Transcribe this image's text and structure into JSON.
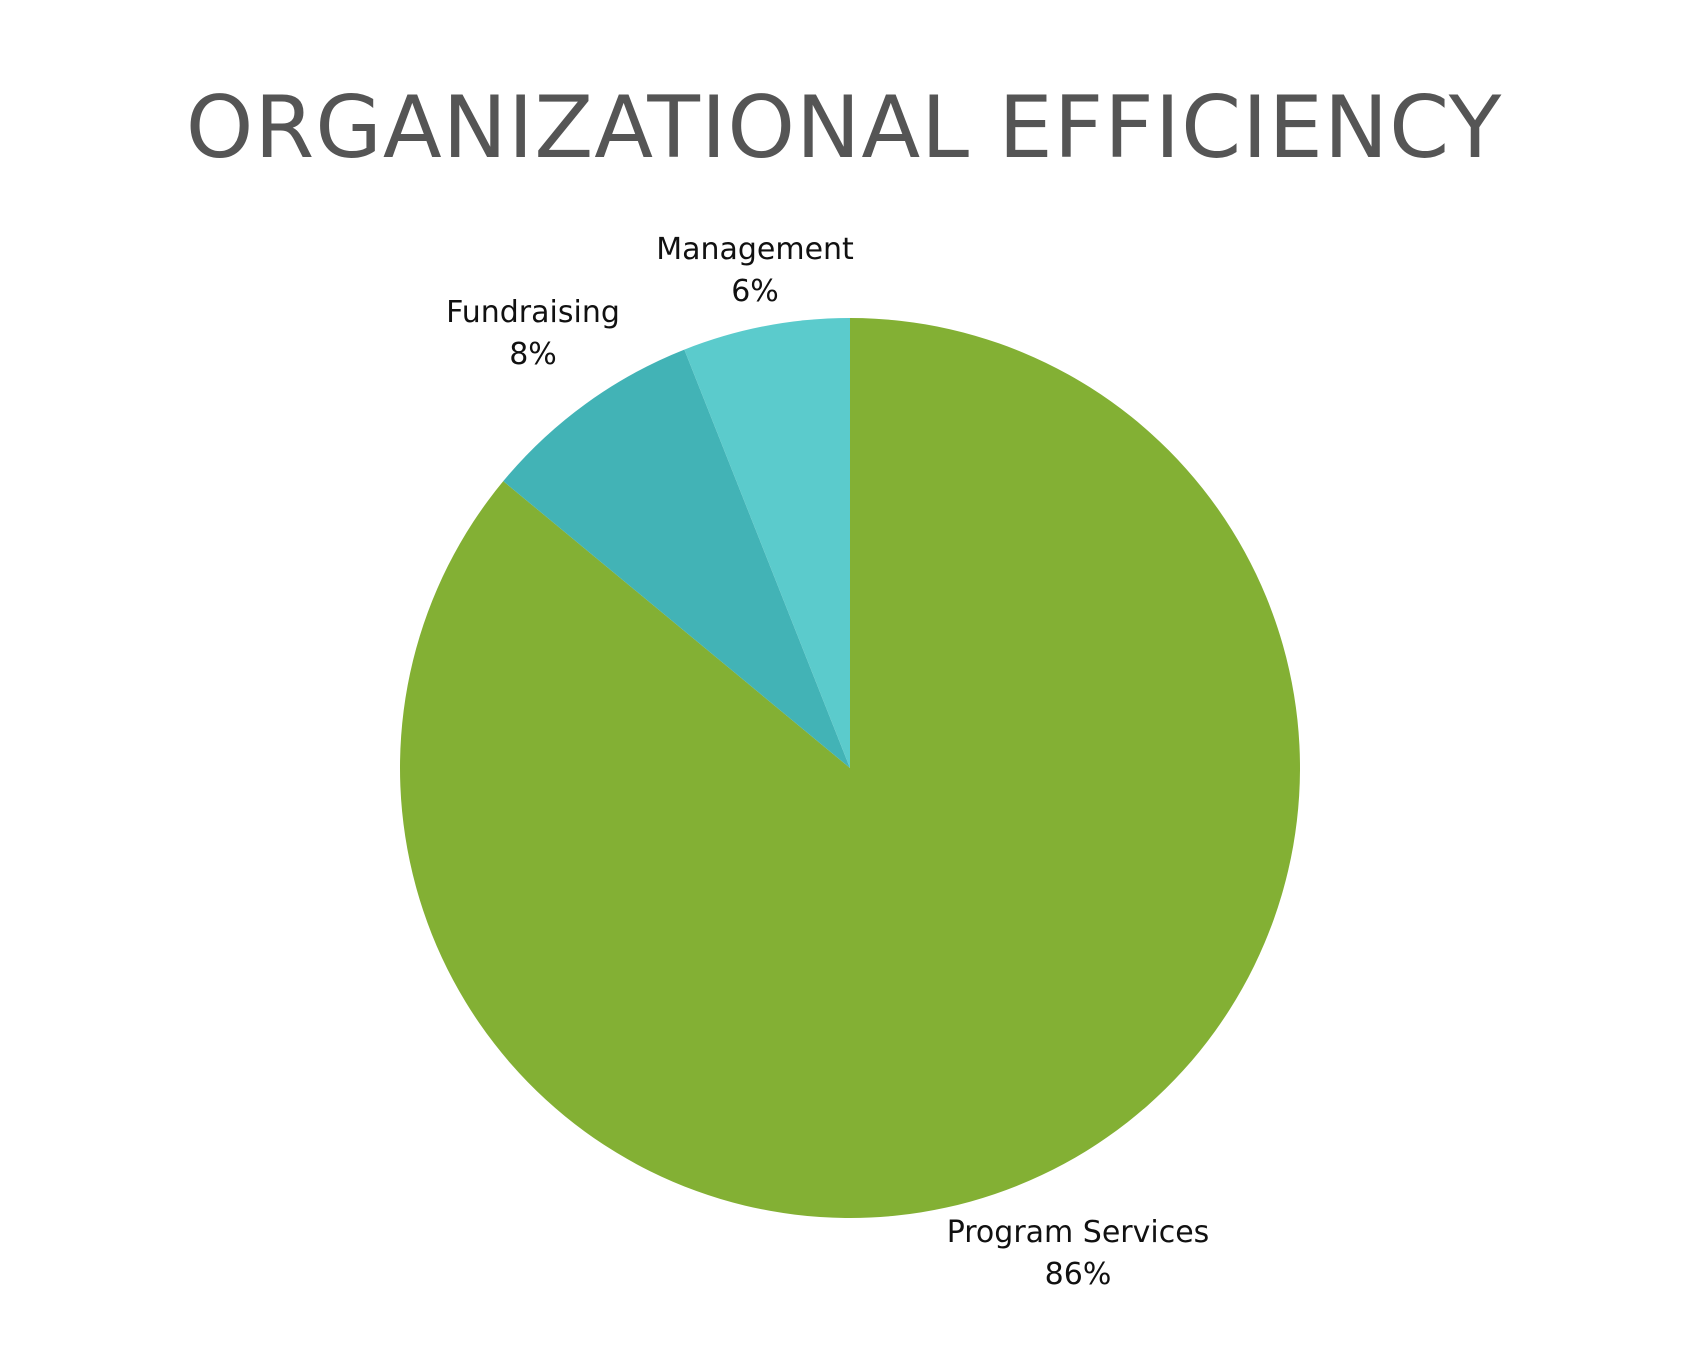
{
  "chart_data": {
    "type": "pie",
    "title": "ORGANIZATIONAL EFFICIENCY",
    "slices": [
      {
        "label": "Program Services",
        "value": 86,
        "display": "86%",
        "color": "#83b034"
      },
      {
        "label": "Fundraising",
        "value": 8,
        "display": "8%",
        "color": "#42b3b6"
      },
      {
        "label": "Management",
        "value": 6,
        "display": "6%",
        "color": "#5bcbcc"
      }
    ],
    "start_angle_deg": 0,
    "direction": "clockwise",
    "legend": "none",
    "data_labels": "outside"
  }
}
